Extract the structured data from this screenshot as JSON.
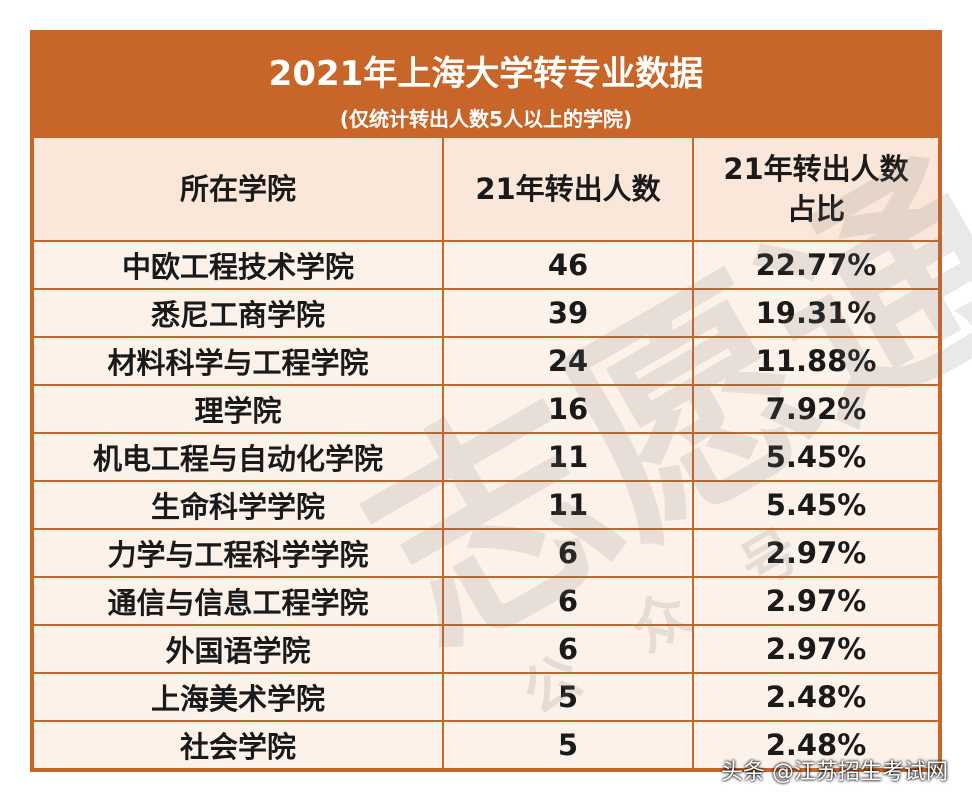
{
  "header": {
    "title": "2021年上海大学转专业数据",
    "subtitle": "(仅统计转出人数5人以上的学院)"
  },
  "table": {
    "columns": [
      "所在学院",
      "21年转出人数",
      "21年转出人数占比"
    ],
    "rows": [
      [
        "中欧工程技术学院",
        46,
        "22.77%"
      ],
      [
        "悉尼工商学院",
        39,
        "19.31%"
      ],
      [
        "材料科学与工程学院",
        24,
        "11.88%"
      ],
      [
        "理学院",
        16,
        "7.92%"
      ],
      [
        "机电工程与自动化学院",
        11,
        "5.45%"
      ],
      [
        "生命科学学院",
        11,
        "5.45%"
      ],
      [
        "力学与工程科学学院",
        6,
        "2.97%"
      ],
      [
        "通信与信息工程学院",
        6,
        "2.97%"
      ],
      [
        "外国语学院",
        6,
        "2.97%"
      ],
      [
        "上海美术学院",
        5,
        "2.48%"
      ],
      [
        "社会学院",
        5,
        "2.48%"
      ]
    ]
  },
  "watermark": {
    "text": "志愿通",
    "subtext": "公众号"
  },
  "footer": "头条 @江苏招生考试网"
}
